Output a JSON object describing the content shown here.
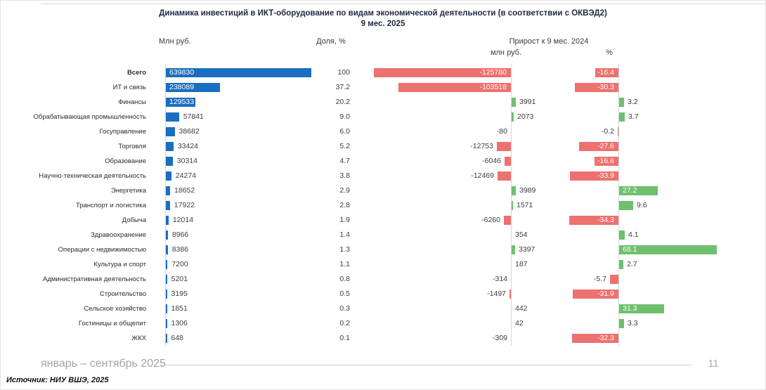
{
  "header": {
    "title": "Динамика инвестиций в ИКТ-оборудование по видам экономической деятельности (в соответствии с ОКВЭД2)",
    "subtitle": "9 мес. 2025"
  },
  "columns": {
    "mln": "Млн руб.",
    "share": "Доля, %",
    "growth": "Прирост к 9 мес. 2024",
    "growth_mln": "млн руб.",
    "growth_pct": "%"
  },
  "footer": {
    "period": "январь – сентябрь 2025",
    "page_number": "11",
    "source": "Источник: НИУ ВШЭ, 2025"
  },
  "colors": {
    "bar_blue": "#1A6EC0",
    "bar_red": "#ED716F",
    "bar_green": "#6EC06F",
    "title_dark": "#1D2742"
  },
  "chart_data": {
    "type": "bar",
    "orientation": "horizontal",
    "title": "Динамика инвестиций в ИКТ-оборудование по видам экономической деятельности (в соответствии с ОКВЭД2) 9 мес. 2025",
    "legend_position": "none",
    "grid": false,
    "categories": [
      "Всего",
      "ИТ и связь",
      "Финансы",
      "Обрабатывающая промышленность",
      "Госуправление",
      "Торговля",
      "Образование",
      "Научно-техническая деятельность",
      "Энергетика",
      "Транспорт и логистика",
      "Добыча",
      "Здравоохранение",
      "Операции с недвижимостью",
      "Культура и спорт",
      "Административная деятельность",
      "Строительство",
      "Сельское хозяйство",
      "Гостиницы и общепит",
      "ЖКХ"
    ],
    "series": [
      {
        "name": "Млн руб.",
        "values": [
          639830,
          238089,
          129533,
          57841,
          38682,
          33424,
          30314,
          24274,
          18652,
          17922,
          12014,
          8966,
          8386,
          7200,
          5201,
          3195,
          1851,
          1306,
          648
        ]
      },
      {
        "name": "Доля, %",
        "values": [
          100,
          37.2,
          20.2,
          9.0,
          6.0,
          5.2,
          4.7,
          3.8,
          2.9,
          2.8,
          1.9,
          1.4,
          1.3,
          1.1,
          0.8,
          0.5,
          0.3,
          0.2,
          0.1
        ],
        "display": [
          "100",
          "37.2",
          "20.2",
          "9.0",
          "6.0",
          "5.2",
          "4.7",
          "3.8",
          "2.9",
          "2.8",
          "1.9",
          "1.4",
          "1.3",
          "1.1",
          "0.8",
          "0.5",
          "0.3",
          "0.2",
          "0.1"
        ]
      },
      {
        "name": "Прирост к 9 мес. 2024, млн руб.",
        "values": [
          -125780,
          -103518,
          3991,
          2073,
          -80,
          -12753,
          -6046,
          -12469,
          3989,
          1571,
          -6260,
          354,
          3397,
          187,
          -314,
          -1497,
          442,
          42,
          -309
        ]
      },
      {
        "name": "Прирост к 9 мес. 2024, %",
        "values": [
          -16.4,
          -30.3,
          3.2,
          3.7,
          -0.2,
          -27.6,
          -16.6,
          -33.9,
          27.2,
          9.6,
          -34.3,
          4.1,
          68.1,
          2.7,
          -5.7,
          -31.9,
          31.3,
          3.3,
          -32.3
        ],
        "display": [
          "-16.4",
          "-30.3",
          "3.2",
          "3.7",
          "-0.2",
          "-27.6",
          "-16.6",
          "-33.9",
          "27.2",
          "9.6",
          "-34.3",
          "4.1",
          "68.1",
          "2.7",
          "-5.7",
          "-31.9",
          "31.3",
          "3.3",
          "-32.3"
        ]
      }
    ],
    "axis_max": {
      "mln_rub": 639830,
      "growth_mln_rub": 125780,
      "growth_pct": 95
    }
  }
}
